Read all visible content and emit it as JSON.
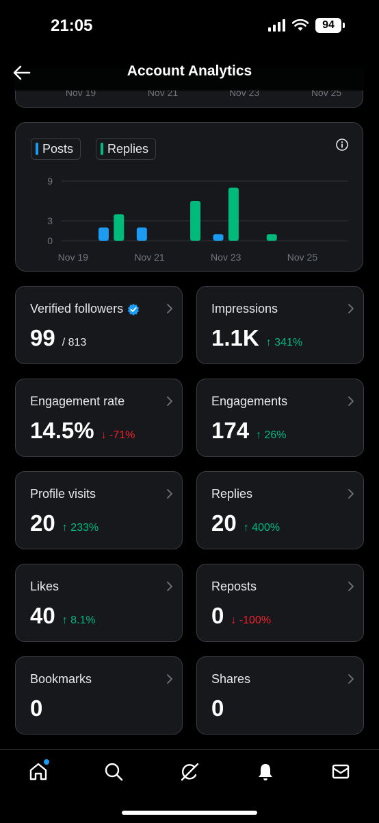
{
  "status": {
    "time": "21:05",
    "battery": "94"
  },
  "header": {
    "title": "Account Analytics"
  },
  "top_chart": {
    "ticks": [
      "Nov 19",
      "Nov 21",
      "Nov 23",
      "Nov 25"
    ]
  },
  "legend": {
    "posts": "Posts",
    "replies": "Replies"
  },
  "colors": {
    "posts": "#1d9bf0",
    "replies": "#00ba7c",
    "up": "#00ba7c",
    "down": "#f4212e",
    "verified": "#1d9bf0"
  },
  "chart_data": {
    "type": "bar",
    "series": [
      {
        "name": "Posts",
        "color": "#1d9bf0",
        "values": [
          [
            19.8,
            2
          ],
          [
            20.8,
            2
          ],
          [
            22.8,
            1
          ]
        ]
      },
      {
        "name": "Replies",
        "color": "#00ba7c",
        "values": [
          [
            20.2,
            4
          ],
          [
            22.2,
            6
          ],
          [
            23.2,
            8
          ],
          [
            24.2,
            1
          ]
        ]
      }
    ],
    "x_ticks": [
      19,
      21,
      23,
      25
    ],
    "x_tick_labels": [
      "Nov 19",
      "Nov 21",
      "Nov 23",
      "Nov 25"
    ],
    "y_ticks": [
      0,
      3,
      9
    ],
    "ylim": [
      0,
      9
    ],
    "xlim": [
      18.7,
      26.2
    ],
    "grid": true,
    "legend": "top-left"
  },
  "stats": [
    {
      "id": "verified-followers",
      "title": "Verified followers",
      "verified": true,
      "value": "99",
      "sub": "/ 813",
      "change": "",
      "dir": ""
    },
    {
      "id": "impressions",
      "title": "Impressions",
      "value": "1.1K",
      "sub": "",
      "change": "↑ 341%",
      "dir": "up"
    },
    {
      "id": "engagement-rate",
      "title": "Engagement rate",
      "value": "14.5%",
      "sub": "",
      "change": "↓ -71%",
      "dir": "down"
    },
    {
      "id": "engagements",
      "title": "Engagements",
      "value": "174",
      "sub": "",
      "change": "↑ 26%",
      "dir": "up"
    },
    {
      "id": "profile-visits",
      "title": "Profile visits",
      "value": "20",
      "sub": "",
      "change": "↑ 233%",
      "dir": "up"
    },
    {
      "id": "replies",
      "title": "Replies",
      "value": "20",
      "sub": "",
      "change": "↑ 400%",
      "dir": "up"
    },
    {
      "id": "likes",
      "title": "Likes",
      "value": "40",
      "sub": "",
      "change": "↑ 8.1%",
      "dir": "up"
    },
    {
      "id": "reposts",
      "title": "Reposts",
      "value": "0",
      "sub": "",
      "change": "↓ -100%",
      "dir": "down"
    },
    {
      "id": "bookmarks",
      "title": "Bookmarks",
      "value": "0",
      "sub": "",
      "change": "",
      "dir": ""
    },
    {
      "id": "shares",
      "title": "Shares",
      "value": "0",
      "sub": "",
      "change": "",
      "dir": ""
    }
  ],
  "nav": [
    "home-icon",
    "search-icon",
    "grok-icon",
    "bell-icon",
    "mail-icon"
  ]
}
